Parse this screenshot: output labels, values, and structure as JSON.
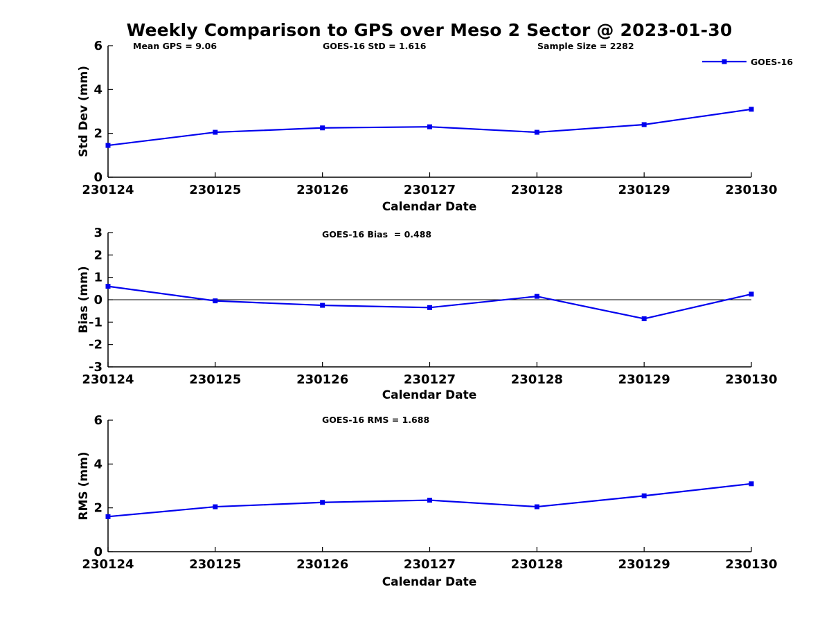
{
  "title": "Weekly Comparison to GPS over Meso 2 Sector @ 2023-01-30",
  "accent_color": "#0000ee",
  "chart_data": [
    {
      "type": "line",
      "name": "std-dev",
      "x": [
        "230124",
        "230125",
        "230126",
        "230127",
        "230128",
        "230129",
        "230130"
      ],
      "series": [
        {
          "name": "GOES-16",
          "color": "#0000ee",
          "marker": "square",
          "values": [
            1.45,
            2.05,
            2.25,
            2.3,
            2.05,
            2.4,
            3.1
          ]
        }
      ],
      "ylabel": "Std Dev (mm)",
      "xlabel": "Calendar Date",
      "ylim": [
        0,
        6
      ],
      "yticks": [
        0,
        2,
        4,
        6
      ],
      "grid": false,
      "zero_line": false,
      "legend": true,
      "legend_position": "top-right",
      "annotations": [
        "Mean GPS = 9.06",
        "GOES-16 StD = 1.616",
        "Sample Size = 2282"
      ]
    },
    {
      "type": "line",
      "name": "bias",
      "x": [
        "230124",
        "230125",
        "230126",
        "230127",
        "230128",
        "230129",
        "230130"
      ],
      "series": [
        {
          "name": "GOES-16",
          "color": "#0000ee",
          "marker": "square",
          "values": [
            0.6,
            -0.05,
            -0.25,
            -0.35,
            0.15,
            -0.85,
            0.25
          ]
        }
      ],
      "ylabel": "Bias (mm)",
      "xlabel": "Calendar Date",
      "ylim": [
        -3,
        3
      ],
      "yticks": [
        -3,
        -2,
        -1,
        0,
        1,
        2,
        3
      ],
      "grid": false,
      "zero_line": true,
      "legend": false,
      "annotations": [
        "GOES-16 Bias  = 0.488"
      ]
    },
    {
      "type": "line",
      "name": "rms",
      "x": [
        "230124",
        "230125",
        "230126",
        "230127",
        "230128",
        "230129",
        "230130"
      ],
      "series": [
        {
          "name": "GOES-16",
          "color": "#0000ee",
          "marker": "square",
          "values": [
            1.6,
            2.05,
            2.25,
            2.35,
            2.05,
            2.55,
            3.1
          ]
        }
      ],
      "ylabel": "RMS (mm)",
      "xlabel": "Calendar Date",
      "ylim": [
        0,
        6
      ],
      "yticks": [
        0,
        2,
        4,
        6
      ],
      "grid": false,
      "zero_line": false,
      "legend": false,
      "annotations": [
        "GOES-16 RMS = 1.688"
      ]
    }
  ]
}
